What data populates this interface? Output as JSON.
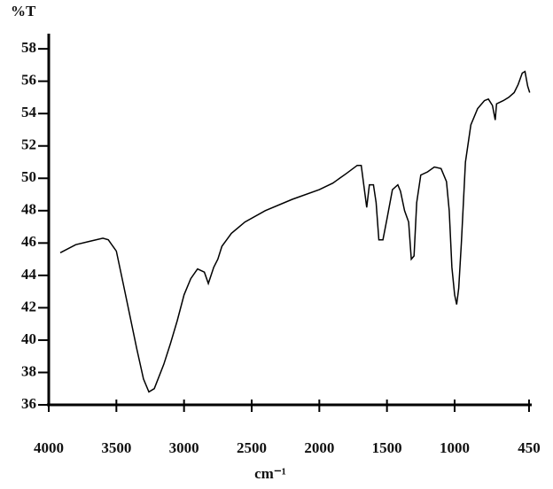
{
  "chart_data": {
    "type": "line",
    "y_label": "%T",
    "x_label": "cm⁻¹",
    "color": "#000000",
    "xlim": [
      4000,
      430
    ],
    "ylim": [
      36,
      58.5
    ],
    "xticks": [
      4000,
      3500,
      3000,
      2500,
      2000,
      1500,
      1000,
      450
    ],
    "yticks": [
      36,
      38,
      40,
      42,
      44,
      46,
      48,
      50,
      52,
      54,
      56,
      58
    ],
    "x": [
      3915,
      3800,
      3700,
      3600,
      3560,
      3500,
      3450,
      3400,
      3350,
      3300,
      3260,
      3220,
      3150,
      3100,
      3050,
      3000,
      2950,
      2900,
      2850,
      2820,
      2780,
      2750,
      2720,
      2650,
      2550,
      2400,
      2200,
      2000,
      1900,
      1800,
      1720,
      1690,
      1670,
      1650,
      1630,
      1600,
      1580,
      1560,
      1530,
      1500,
      1460,
      1420,
      1400,
      1370,
      1340,
      1320,
      1300,
      1280,
      1250,
      1200,
      1150,
      1100,
      1060,
      1040,
      1020,
      1000,
      985,
      970,
      950,
      920,
      880,
      830,
      780,
      750,
      720,
      700,
      690,
      640,
      600,
      560,
      530,
      500,
      480,
      460,
      445
    ],
    "values": [
      45.4,
      45.9,
      46.1,
      46.3,
      46.2,
      45.5,
      43.5,
      41.5,
      39.5,
      37.6,
      36.8,
      37.0,
      38.5,
      39.8,
      41.2,
      42.8,
      43.8,
      44.4,
      44.2,
      43.5,
      44.5,
      45.0,
      45.8,
      46.6,
      47.3,
      48.0,
      48.7,
      49.3,
      49.7,
      50.3,
      50.8,
      50.8,
      49.5,
      48.2,
      49.6,
      49.6,
      48.5,
      46.2,
      46.2,
      47.5,
      49.3,
      49.6,
      49.2,
      48.0,
      47.3,
      45.0,
      45.2,
      48.5,
      50.2,
      50.4,
      50.7,
      50.6,
      49.8,
      48.0,
      44.5,
      42.8,
      42.2,
      43.2,
      46.0,
      51.0,
      53.3,
      54.3,
      54.8,
      54.9,
      54.5,
      53.6,
      54.6,
      54.8,
      55.0,
      55.3,
      55.8,
      56.5,
      56.6,
      55.7,
      55.3
    ]
  }
}
